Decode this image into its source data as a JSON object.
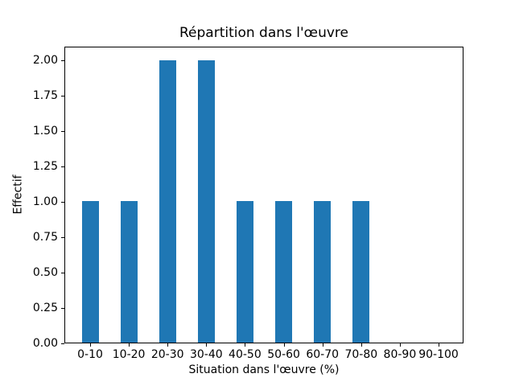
{
  "chart_data": {
    "type": "bar",
    "title": "Répartition dans l'œuvre",
    "xlabel": "Situation dans l'œuvre (%)",
    "ylabel": "Effectif",
    "categories": [
      "0-10",
      "10-20",
      "20-30",
      "30-40",
      "40-50",
      "50-60",
      "60-70",
      "70-80",
      "80-90",
      "90-100"
    ],
    "values": [
      1,
      1,
      2,
      2,
      1,
      1,
      1,
      1,
      0,
      0
    ],
    "ytick_values": [
      0.0,
      0.25,
      0.5,
      0.75,
      1.0,
      1.25,
      1.5,
      1.75,
      2.0
    ],
    "ytick_labels": [
      "0.00",
      "0.25",
      "0.50",
      "0.75",
      "1.00",
      "1.25",
      "1.50",
      "1.75",
      "2.00"
    ],
    "ylim": [
      0,
      2.1
    ],
    "bar_color": "#1f77b4",
    "axis_color": "#000000",
    "background_color": "#ffffff",
    "grid": false,
    "legend": null
  }
}
